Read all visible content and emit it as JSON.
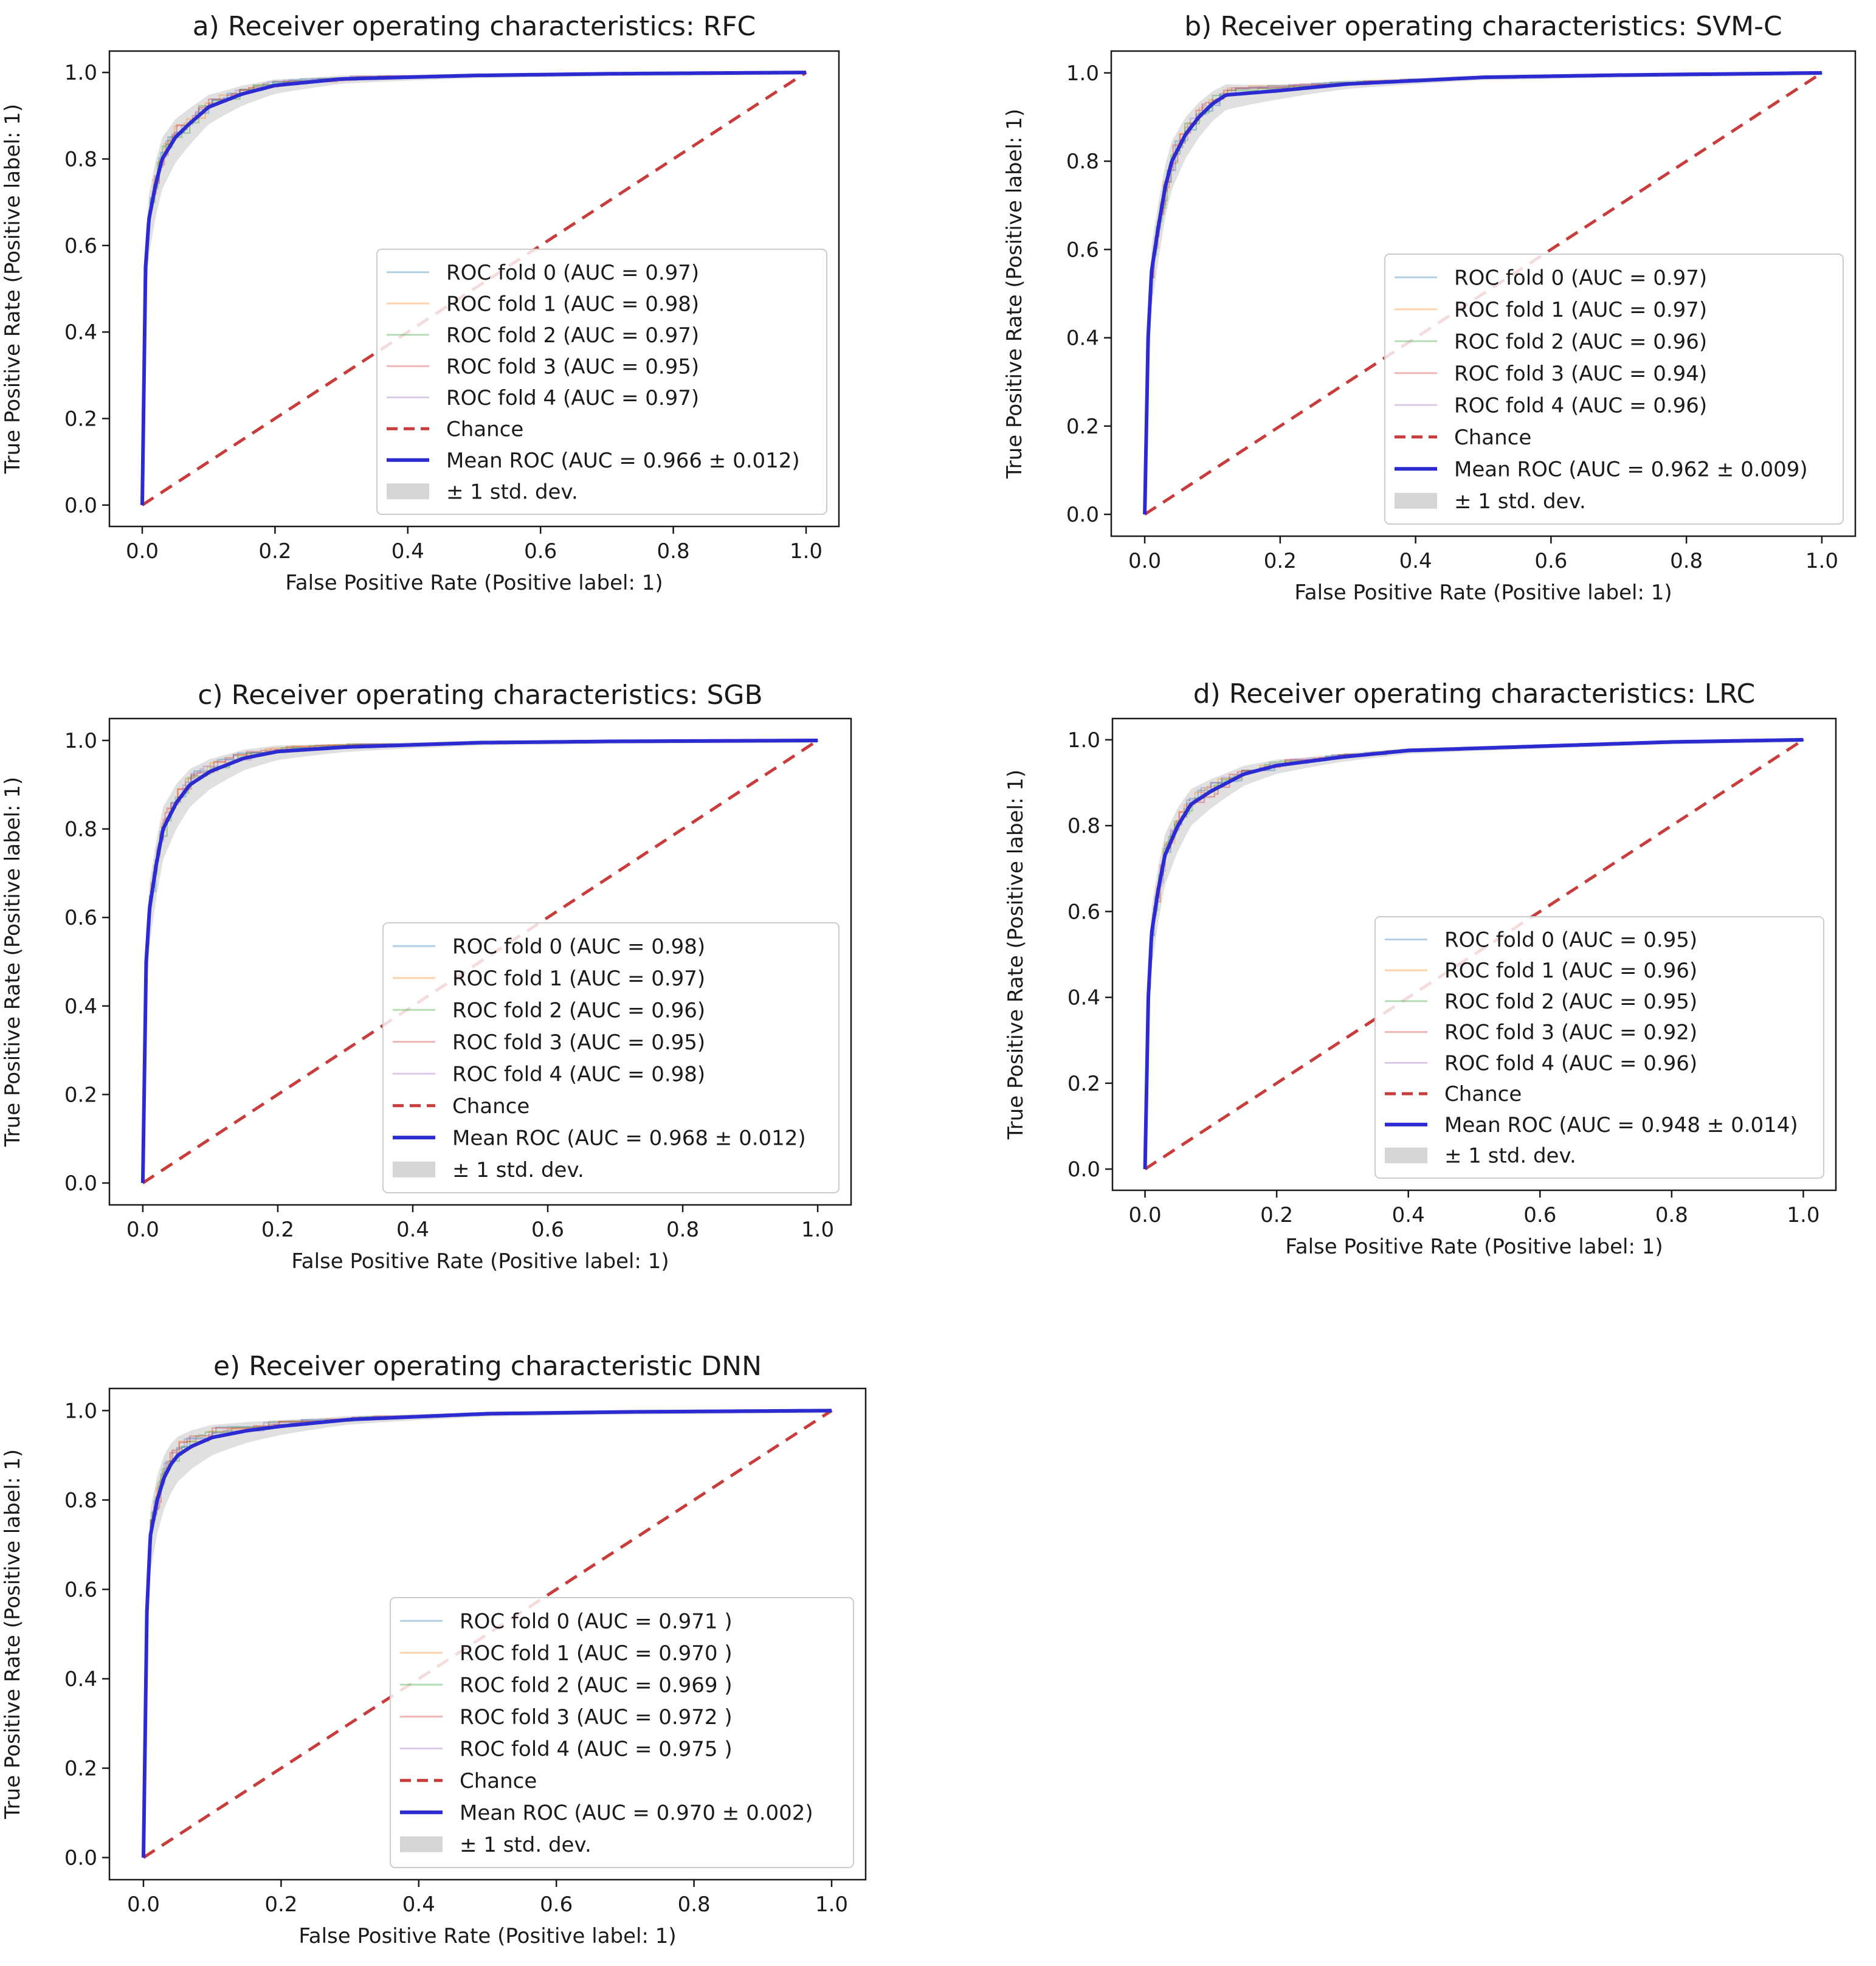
{
  "chart_data": [
    {
      "type": "line",
      "panel": "a",
      "title": "a) Receiver operating characteristics: RFC",
      "xlabel": "False Positive Rate (Positive label: 1)",
      "ylabel": "True Positive Rate (Positive label: 1)",
      "xlim": [
        0,
        1
      ],
      "ylim": [
        0,
        1
      ],
      "xticks": [
        "0.0",
        "0.2",
        "0.4",
        "0.6",
        "0.8",
        "1.0"
      ],
      "yticks": [
        "0.0",
        "0.2",
        "0.4",
        "0.6",
        "0.8",
        "1.0"
      ],
      "legend_position": "lower-right",
      "folds": [
        {
          "label": "ROC fold 0 (AUC = 0.97)",
          "color": "#1f77b4"
        },
        {
          "label": "ROC fold 1 (AUC = 0.98)",
          "color": "#ff7f0e"
        },
        {
          "label": "ROC fold 2 (AUC = 0.97)",
          "color": "#2ca02c"
        },
        {
          "label": "ROC fold 3 (AUC = 0.95)",
          "color": "#d62728"
        },
        {
          "label": "ROC fold 4 (AUC = 0.97)",
          "color": "#9467bd"
        }
      ],
      "chance_label": "Chance",
      "mean_label": "Mean ROC (AUC = 0.966 ± 0.012)",
      "std_label": "± 1 std. dev.",
      "mean_roc": {
        "x": [
          0,
          0.005,
          0.01,
          0.02,
          0.03,
          0.05,
          0.07,
          0.1,
          0.15,
          0.2,
          0.3,
          0.5,
          0.7,
          1.0
        ],
        "y": [
          0,
          0.55,
          0.66,
          0.74,
          0.8,
          0.85,
          0.88,
          0.92,
          0.95,
          0.97,
          0.985,
          0.993,
          0.997,
          1.0
        ]
      }
    },
    {
      "type": "line",
      "panel": "b",
      "title": "b) Receiver operating characteristics: SVM-C",
      "xlabel": "False Positive Rate (Positive label: 1)",
      "ylabel": "True Positive Rate (Positive label: 1)",
      "xlim": [
        0,
        1
      ],
      "ylim": [
        0,
        1
      ],
      "xticks": [
        "0.0",
        "0.2",
        "0.4",
        "0.6",
        "0.8",
        "1.0"
      ],
      "yticks": [
        "0.0",
        "0.2",
        "0.4",
        "0.6",
        "0.8",
        "1.0"
      ],
      "legend_position": "lower-right",
      "folds": [
        {
          "label": "ROC fold 0 (AUC = 0.97)",
          "color": "#1f77b4"
        },
        {
          "label": "ROC fold 1 (AUC = 0.97)",
          "color": "#ff7f0e"
        },
        {
          "label": "ROC fold 2 (AUC = 0.96)",
          "color": "#2ca02c"
        },
        {
          "label": "ROC fold 3 (AUC = 0.94)",
          "color": "#d62728"
        },
        {
          "label": "ROC fold 4 (AUC = 0.96)",
          "color": "#9467bd"
        }
      ],
      "chance_label": "Chance",
      "mean_label": "Mean ROC (AUC = 0.962 ± 0.009)",
      "std_label": "± 1 std. dev.",
      "mean_roc": {
        "x": [
          0,
          0.005,
          0.01,
          0.02,
          0.03,
          0.04,
          0.06,
          0.08,
          0.1,
          0.12,
          0.2,
          0.3,
          0.5,
          0.7,
          1.0
        ],
        "y": [
          0,
          0.4,
          0.55,
          0.65,
          0.74,
          0.8,
          0.86,
          0.9,
          0.93,
          0.95,
          0.96,
          0.975,
          0.99,
          0.995,
          1.0
        ]
      }
    },
    {
      "type": "line",
      "panel": "c",
      "title": "c) Receiver operating characteristics: SGB",
      "xlabel": "False Positive Rate (Positive label: 1)",
      "ylabel": "True Positive Rate (Positive label: 1)",
      "xlim": [
        0,
        1
      ],
      "ylim": [
        0,
        1
      ],
      "xticks": [
        "0.0",
        "0.2",
        "0.4",
        "0.6",
        "0.8",
        "1.0"
      ],
      "yticks": [
        "0.0",
        "0.2",
        "0.4",
        "0.6",
        "0.8",
        "1.0"
      ],
      "legend_position": "lower-right",
      "folds": [
        {
          "label": "ROC fold 0 (AUC = 0.98)",
          "color": "#1f77b4"
        },
        {
          "label": "ROC fold 1 (AUC = 0.97)",
          "color": "#ff7f0e"
        },
        {
          "label": "ROC fold 2 (AUC = 0.96)",
          "color": "#2ca02c"
        },
        {
          "label": "ROC fold 3 (AUC = 0.95)",
          "color": "#d62728"
        },
        {
          "label": "ROC fold 4 (AUC = 0.98)",
          "color": "#9467bd"
        }
      ],
      "chance_label": "Chance",
      "mean_label": "Mean ROC (AUC = 0.968 ± 0.012)",
      "std_label": "± 1 std. dev.",
      "mean_roc": {
        "x": [
          0,
          0.005,
          0.01,
          0.02,
          0.03,
          0.05,
          0.07,
          0.1,
          0.15,
          0.2,
          0.3,
          0.5,
          0.7,
          1.0
        ],
        "y": [
          0,
          0.5,
          0.62,
          0.72,
          0.8,
          0.86,
          0.9,
          0.93,
          0.96,
          0.975,
          0.985,
          0.995,
          0.998,
          1.0
        ]
      }
    },
    {
      "type": "line",
      "panel": "d",
      "title": "d) Receiver operating characteristics: LRC",
      "xlabel": "False Positive Rate (Positive label: 1)",
      "ylabel": "True Positive Rate (Positive label: 1)",
      "xlim": [
        0,
        1
      ],
      "ylim": [
        0,
        1
      ],
      "xticks": [
        "0.0",
        "0.2",
        "0.4",
        "0.6",
        "0.8",
        "1.0"
      ],
      "yticks": [
        "0.0",
        "0.2",
        "0.4",
        "0.6",
        "0.8",
        "1.0"
      ],
      "legend_position": "lower-right",
      "folds": [
        {
          "label": "ROC fold 0 (AUC = 0.95)",
          "color": "#1f77b4"
        },
        {
          "label": "ROC fold 1 (AUC = 0.96)",
          "color": "#ff7f0e"
        },
        {
          "label": "ROC fold 2 (AUC = 0.95)",
          "color": "#2ca02c"
        },
        {
          "label": "ROC fold 3 (AUC = 0.92)",
          "color": "#d62728"
        },
        {
          "label": "ROC fold 4 (AUC = 0.96)",
          "color": "#9467bd"
        }
      ],
      "chance_label": "Chance",
      "mean_label": "Mean ROC (AUC = 0.948 ± 0.014)",
      "std_label": "± 1 std. dev.",
      "mean_roc": {
        "x": [
          0,
          0.005,
          0.01,
          0.02,
          0.03,
          0.05,
          0.07,
          0.1,
          0.15,
          0.2,
          0.3,
          0.4,
          0.6,
          0.8,
          1.0
        ],
        "y": [
          0,
          0.4,
          0.55,
          0.65,
          0.73,
          0.8,
          0.85,
          0.88,
          0.92,
          0.94,
          0.96,
          0.975,
          0.985,
          0.995,
          1.0
        ]
      }
    },
    {
      "type": "line",
      "panel": "e",
      "title": "e) Receiver operating characteristic DNN",
      "xlabel": "False Positive Rate (Positive label: 1)",
      "ylabel": "True Positive Rate (Positive label: 1)",
      "xlim": [
        0,
        1
      ],
      "ylim": [
        0,
        1
      ],
      "xticks": [
        "0.0",
        "0.2",
        "0.4",
        "0.6",
        "0.8",
        "1.0"
      ],
      "yticks": [
        "0.0",
        "0.2",
        "0.4",
        "0.6",
        "0.8",
        "1.0"
      ],
      "legend_position": "lower-right",
      "folds": [
        {
          "label": "ROC fold 0 (AUC = 0.971 )",
          "color": "#1f77b4"
        },
        {
          "label": "ROC fold 1 (AUC = 0.970 )",
          "color": "#ff7f0e"
        },
        {
          "label": "ROC fold 2 (AUC = 0.969 )",
          "color": "#2ca02c"
        },
        {
          "label": "ROC fold 3 (AUC = 0.972 )",
          "color": "#d62728"
        },
        {
          "label": "ROC fold 4 (AUC = 0.975 )",
          "color": "#9467bd"
        }
      ],
      "chance_label": "Chance",
      "mean_label": "Mean ROC (AUC = 0.970 ± 0.002)",
      "std_label": "± 1 std. dev.",
      "mean_roc": {
        "x": [
          0,
          0.005,
          0.01,
          0.02,
          0.03,
          0.04,
          0.05,
          0.07,
          0.1,
          0.15,
          0.2,
          0.3,
          0.5,
          0.7,
          1.0
        ],
        "y": [
          0,
          0.55,
          0.72,
          0.8,
          0.85,
          0.88,
          0.9,
          0.92,
          0.94,
          0.955,
          0.965,
          0.98,
          0.993,
          0.997,
          1.0
        ]
      }
    }
  ],
  "colors": {
    "mean": "#2b2bd1",
    "chance": "#c83c3c",
    "std": "#d5d5d5",
    "axis": "#1a1a1a"
  }
}
